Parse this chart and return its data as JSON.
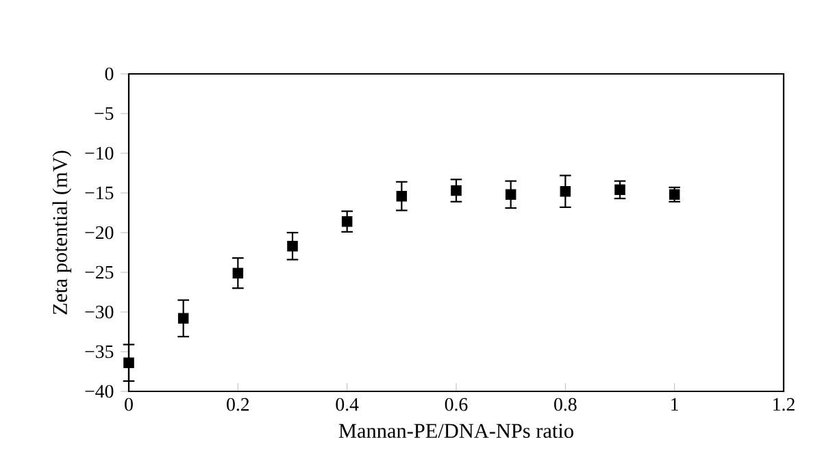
{
  "chart_data": {
    "type": "scatter",
    "xlabel": "Mannan-PE/DNA-NPs ratio",
    "ylabel": "Zeta potential (mV)",
    "x": [
      0,
      0.1,
      0.2,
      0.3,
      0.4,
      0.5,
      0.6,
      0.7,
      0.8,
      0.9,
      1.0
    ],
    "series": [
      {
        "color": "#000000",
        "values": [
          -36.4,
          -30.8,
          -25.1,
          -21.7,
          -18.6,
          -15.4,
          -14.7,
          -15.2,
          -14.8,
          -14.6,
          -15.2
        ],
        "errors": [
          2.3,
          2.3,
          1.9,
          1.7,
          1.3,
          1.8,
          1.4,
          1.7,
          2.0,
          1.1,
          0.9
        ]
      }
    ],
    "xlim": [
      0,
      1.2
    ],
    "ylim": [
      -40,
      0
    ],
    "xticks": [
      0,
      0.2,
      0.4,
      0.6,
      0.8,
      1,
      1.2
    ],
    "yticks": [
      {
        "value": 0,
        "label": "0"
      },
      {
        "value": -5,
        "label": "−5"
      },
      {
        "value": -10,
        "label": "−10"
      },
      {
        "value": -15,
        "label": "−15"
      },
      {
        "value": -20,
        "label": "−20"
      },
      {
        "value": -25,
        "label": "−25"
      },
      {
        "value": -30,
        "label": "−30"
      },
      {
        "value": -35,
        "label": "−35"
      },
      {
        "value": -40,
        "label": "−40"
      }
    ],
    "marker": "square",
    "grid": false
  }
}
